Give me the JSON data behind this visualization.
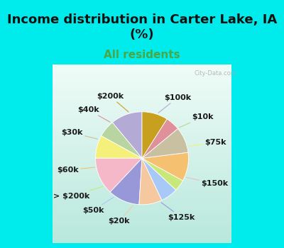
{
  "title": "Income distribution in Carter Lake, IA\n(%)",
  "subtitle": "All residents",
  "labels": [
    "$100k",
    "$10k",
    "$75k",
    "$150k",
    "$125k",
    "$20k",
    "$50k",
    "> $200k",
    "$60k",
    "$30k",
    "$40k",
    "$200k"
  ],
  "values": [
    11,
    6,
    8,
    13,
    11,
    8,
    6,
    4,
    10,
    9,
    5,
    9
  ],
  "colors": [
    "#b3aad6",
    "#b8d4a0",
    "#f5f07a",
    "#f5b8c8",
    "#9898d8",
    "#f5c8a0",
    "#a8c8f5",
    "#c8e87a",
    "#f5c070",
    "#c8c0a0",
    "#e09098",
    "#c8a020"
  ],
  "background_color": "#00ecec",
  "chart_bg_top": "#f0f8f0",
  "chart_bg_bottom": "#b8e8d8",
  "title_fontsize": 13,
  "subtitle_fontsize": 11,
  "subtitle_color": "#48a848",
  "label_fontsize": 8,
  "startangle": 90,
  "title_color": "#111111"
}
